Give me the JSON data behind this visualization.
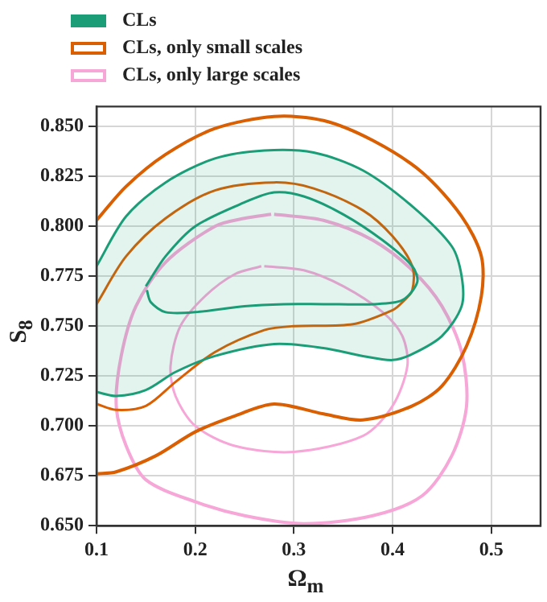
{
  "chart_data": {
    "type": "line",
    "xlabel": "Ω$_{m}$",
    "ylabel": "S$_{8}$",
    "xlim": [
      0.1,
      0.55
    ],
    "xticks": [
      0.1,
      0.2,
      0.3,
      0.4,
      0.5
    ],
    "ylim": [
      0.65,
      0.86
    ],
    "yticks": [
      {
        "value": 0.65,
        "label": "0.650"
      },
      {
        "value": 0.675,
        "label": "0.675"
      },
      {
        "value": 0.7,
        "label": "0.700"
      },
      {
        "value": 0.725,
        "label": "0.725"
      },
      {
        "value": 0.75,
        "label": "0.750"
      },
      {
        "value": 0.775,
        "label": "0.775"
      },
      {
        "value": 0.8,
        "label": "0.800"
      },
      {
        "value": 0.825,
        "label": "0.825"
      },
      {
        "value": 0.85,
        "label": "0.850"
      }
    ],
    "grid": true,
    "legend": "top left",
    "marker": "none",
    "series": [
      {
        "name": "CLs",
        "type": "area",
        "color": "#1b9e77",
        "x": [
          0.1,
          0.13,
          0.17,
          0.22,
          0.27,
          0.32,
          0.37,
          0.42,
          0.46,
          0.47,
          0.47,
          0.45,
          0.42,
          0.4,
          0.37,
          0.33,
          0.28,
          0.22,
          0.18,
          0.15,
          0.12,
          0.1
        ],
        "values": [
          0.78,
          0.805,
          0.822,
          0.834,
          0.838,
          0.837,
          0.828,
          0.81,
          0.79,
          0.775,
          0.76,
          0.745,
          0.736,
          0.733,
          0.735,
          0.739,
          0.741,
          0.735,
          0.727,
          0.718,
          0.715,
          0.717
        ]
      },
      {
        "type": "line",
        "color": "#1b9e77",
        "x": [
          0.15,
          0.17,
          0.2,
          0.25,
          0.28,
          0.31,
          0.35,
          0.39,
          0.42,
          0.425,
          0.41,
          0.38,
          0.33,
          0.29,
          0.25,
          0.2,
          0.17,
          0.155,
          0.151
        ],
        "values": [
          0.77,
          0.785,
          0.8,
          0.812,
          0.817,
          0.815,
          0.806,
          0.793,
          0.78,
          0.772,
          0.763,
          0.761,
          0.761,
          0.761,
          0.76,
          0.757,
          0.757,
          0.762,
          0.768
        ]
      },
      {
        "name": "CLs, only small scales",
        "type": "line",
        "color": "#d95f02",
        "x": [
          0.1,
          0.13,
          0.17,
          0.22,
          0.28,
          0.33,
          0.38,
          0.43,
          0.47,
          0.49,
          0.49,
          0.475,
          0.45,
          0.42,
          0.37,
          0.33,
          0.28,
          0.24,
          0.2,
          0.16,
          0.12,
          0.1
        ],
        "values": [
          0.803,
          0.82,
          0.836,
          0.849,
          0.855,
          0.853,
          0.843,
          0.827,
          0.805,
          0.785,
          0.765,
          0.74,
          0.72,
          0.71,
          0.703,
          0.706,
          0.711,
          0.705,
          0.697,
          0.685,
          0.677,
          0.676
        ]
      },
      {
        "type": "line",
        "color": "#d95f02",
        "x": [
          0.1,
          0.13,
          0.17,
          0.22,
          0.28,
          0.32,
          0.37,
          0.4,
          0.42,
          0.42,
          0.41,
          0.4,
          0.36,
          0.3,
          0.27,
          0.22,
          0.18,
          0.15,
          0.12,
          0.1
        ],
        "values": [
          0.761,
          0.785,
          0.804,
          0.818,
          0.822,
          0.819,
          0.808,
          0.795,
          0.78,
          0.768,
          0.762,
          0.758,
          0.751,
          0.75,
          0.748,
          0.737,
          0.722,
          0.71,
          0.708,
          0.711
        ]
      },
      {
        "name": "CLs, only large scales",
        "type": "line",
        "color": "#f7a6d8",
        "x": [
          0.28,
          0.33,
          0.38,
          0.42,
          0.45,
          0.47,
          0.475,
          0.46,
          0.43,
          0.38,
          0.31,
          0.25,
          0.2,
          0.15,
          0.13,
          0.12,
          0.125,
          0.14,
          0.17,
          0.22,
          0.25,
          0.277
        ],
        "values": [
          0.806,
          0.803,
          0.793,
          0.778,
          0.76,
          0.737,
          0.71,
          0.685,
          0.665,
          0.655,
          0.651,
          0.655,
          0.662,
          0.673,
          0.69,
          0.71,
          0.735,
          0.76,
          0.782,
          0.8,
          0.804,
          0.806
        ]
      },
      {
        "type": "line",
        "color": "#f7a6d8",
        "x": [
          0.27,
          0.31,
          0.35,
          0.39,
          0.41,
          0.415,
          0.4,
          0.37,
          0.3,
          0.24,
          0.2,
          0.18,
          0.175,
          0.185,
          0.21,
          0.24,
          0.267
        ],
        "values": [
          0.78,
          0.778,
          0.77,
          0.757,
          0.745,
          0.73,
          0.71,
          0.695,
          0.687,
          0.69,
          0.7,
          0.715,
          0.73,
          0.75,
          0.765,
          0.776,
          0.78
        ]
      }
    ]
  }
}
